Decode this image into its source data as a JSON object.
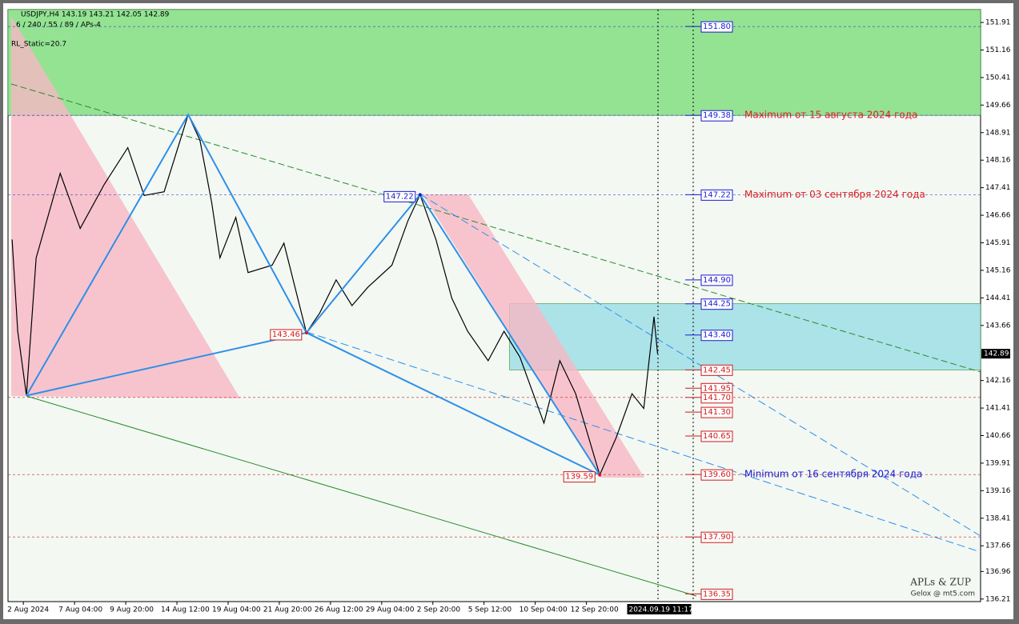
{
  "chart_data": {
    "type": "line",
    "header": [
      "USDJPY,H4  143.19 143.21 142.05 142.89",
      "6 / 240 / 55 / 89 / APs-4",
      "RL_Static=20.7"
    ],
    "footer": [
      "APLs & ZUP",
      "Gelox @ mt5.com"
    ],
    "xlim": [
      -0.3,
      18.7
    ],
    "xticks": [
      {
        "value": 0,
        "label": "2 Aug 2024"
      },
      {
        "value": 1,
        "label": "7 Aug 04:00"
      },
      {
        "value": 2,
        "label": "9 Aug 20:00"
      },
      {
        "value": 3,
        "label": "14 Aug 12:00"
      },
      {
        "value": 4,
        "label": "19 Aug 04:00"
      },
      {
        "value": 5,
        "label": "21 Aug 20:00"
      },
      {
        "value": 6,
        "label": "26 Aug 12:00"
      },
      {
        "value": 7,
        "label": "29 Aug 04:00"
      },
      {
        "value": 8,
        "label": "2 Sep 20:00"
      },
      {
        "value": 9,
        "label": "5 Sep 12:00"
      },
      {
        "value": 10,
        "label": "10 Sep 04:00"
      },
      {
        "value": 11,
        "label": "12 Sep 20:00"
      }
    ],
    "ylim": [
      136.14,
      152.26
    ],
    "yticks": [
      151.91,
      151.16,
      150.41,
      149.66,
      148.91,
      148.16,
      147.41,
      146.66,
      145.91,
      145.16,
      144.41,
      143.66,
      142.16,
      141.41,
      140.66,
      139.91,
      139.16,
      138.41,
      137.66,
      136.96,
      136.21
    ],
    "series": [
      {
        "color": "#000000",
        "x": [
          -0.22,
          -0.11,
          0.06,
          0.25,
          0.72,
          1.11,
          1.58,
          2.04,
          2.36,
          2.75,
          3.22,
          3.45,
          3.68,
          3.84,
          4.15,
          4.39,
          4.86,
          5.09,
          5.53,
          5.79,
          6.11,
          6.42,
          6.73,
          7.2,
          7.51,
          7.75,
          8.06,
          8.37,
          8.68,
          9.08,
          9.39,
          9.7,
          10.17,
          10.48,
          10.79,
          11.26,
          11.58,
          11.89,
          12.12,
          12.32,
          12.39
        ],
        "values": [
          146.0,
          143.5,
          141.75,
          145.5,
          147.8,
          146.3,
          147.5,
          148.5,
          147.2,
          147.3,
          149.4,
          148.7,
          147.0,
          145.5,
          146.6,
          145.1,
          145.3,
          145.9,
          143.46,
          144.0,
          144.9,
          144.2,
          144.7,
          145.3,
          146.5,
          147.22,
          146.0,
          144.4,
          143.5,
          142.7,
          143.5,
          142.8,
          141.0,
          142.7,
          141.8,
          139.59,
          140.6,
          141.8,
          141.4,
          143.9,
          142.89
        ]
      },
      {
        "color": "#2f8fe8",
        "x": [
          0.06,
          3.22,
          5.53,
          7.75,
          11.26
        ],
        "values": [
          141.75,
          149.4,
          143.46,
          147.22,
          139.59
        ]
      },
      {
        "color": "#2f8fe8",
        "x": [
          0.06,
          5.53,
          11.26
        ],
        "values": [
          141.75,
          143.46,
          139.59
        ]
      }
    ],
    "zones": [
      {
        "x_from": -0.3,
        "from": 149.38,
        "to": 152.26,
        "color": "#93e393"
      },
      {
        "x_from": 9.5,
        "from": 142.45,
        "to": 144.25,
        "color": "#abe3e8"
      }
    ],
    "pivots": [
      {
        "x": 7.75,
        "value": 147.22,
        "color": "#1a1ad0"
      },
      {
        "x": 5.53,
        "value": 143.46,
        "color": "#d01a1a"
      },
      {
        "x": 11.26,
        "value": 139.59,
        "color": "#d01a1a"
      }
    ],
    "levels": [
      {
        "value": 151.8,
        "label": "151.80",
        "color": "#1a1ad0",
        "extended": true
      },
      {
        "value": 149.38,
        "color": "#1a1ad0",
        "extended": true,
        "note": "Maximum от 15 августа 2024 года",
        "note_color": "#e02020"
      },
      {
        "value": 147.22,
        "color": "#1a1ad0",
        "extended": true,
        "note": "Maximum от 03 сентября 2024 года",
        "note_color": "#e02020"
      },
      {
        "value": 144.9,
        "label": "144.90",
        "color": "#1a1ad0",
        "extended": false
      },
      {
        "value": 144.25,
        "color": "#1a1ad0",
        "extended": false
      },
      {
        "value": 143.4,
        "label": "143.40",
        "color": "#1a1ad0",
        "extended": false
      },
      {
        "value": 142.45,
        "color": "#d01a1a",
        "extended": false
      },
      {
        "value": 141.95,
        "color": "#d01a1a",
        "extended": false
      },
      {
        "value": 141.7,
        "label": "141.70",
        "color": "#d01a1a",
        "extended": true
      },
      {
        "value": 141.3,
        "label": "141.30",
        "color": "#d01a1a",
        "extended": false
      },
      {
        "value": 140.65,
        "color": "#d01a1a",
        "extended": false
      },
      {
        "value": 139.6,
        "label": "139.60",
        "color": "#d01a1a",
        "extended": true,
        "note": "Minimum от 16  сентября 2024 года",
        "note_color": "#1a1ad0"
      },
      {
        "value": 137.9,
        "label": "137.90",
        "color": "#d01a1a",
        "extended": true
      },
      {
        "value": 136.35,
        "color": "#d01a1a",
        "extended": false
      }
    ],
    "last": 142.89,
    "cursor": {
      "x": 12.39,
      "label": "2024.09.19 11:17"
    }
  }
}
